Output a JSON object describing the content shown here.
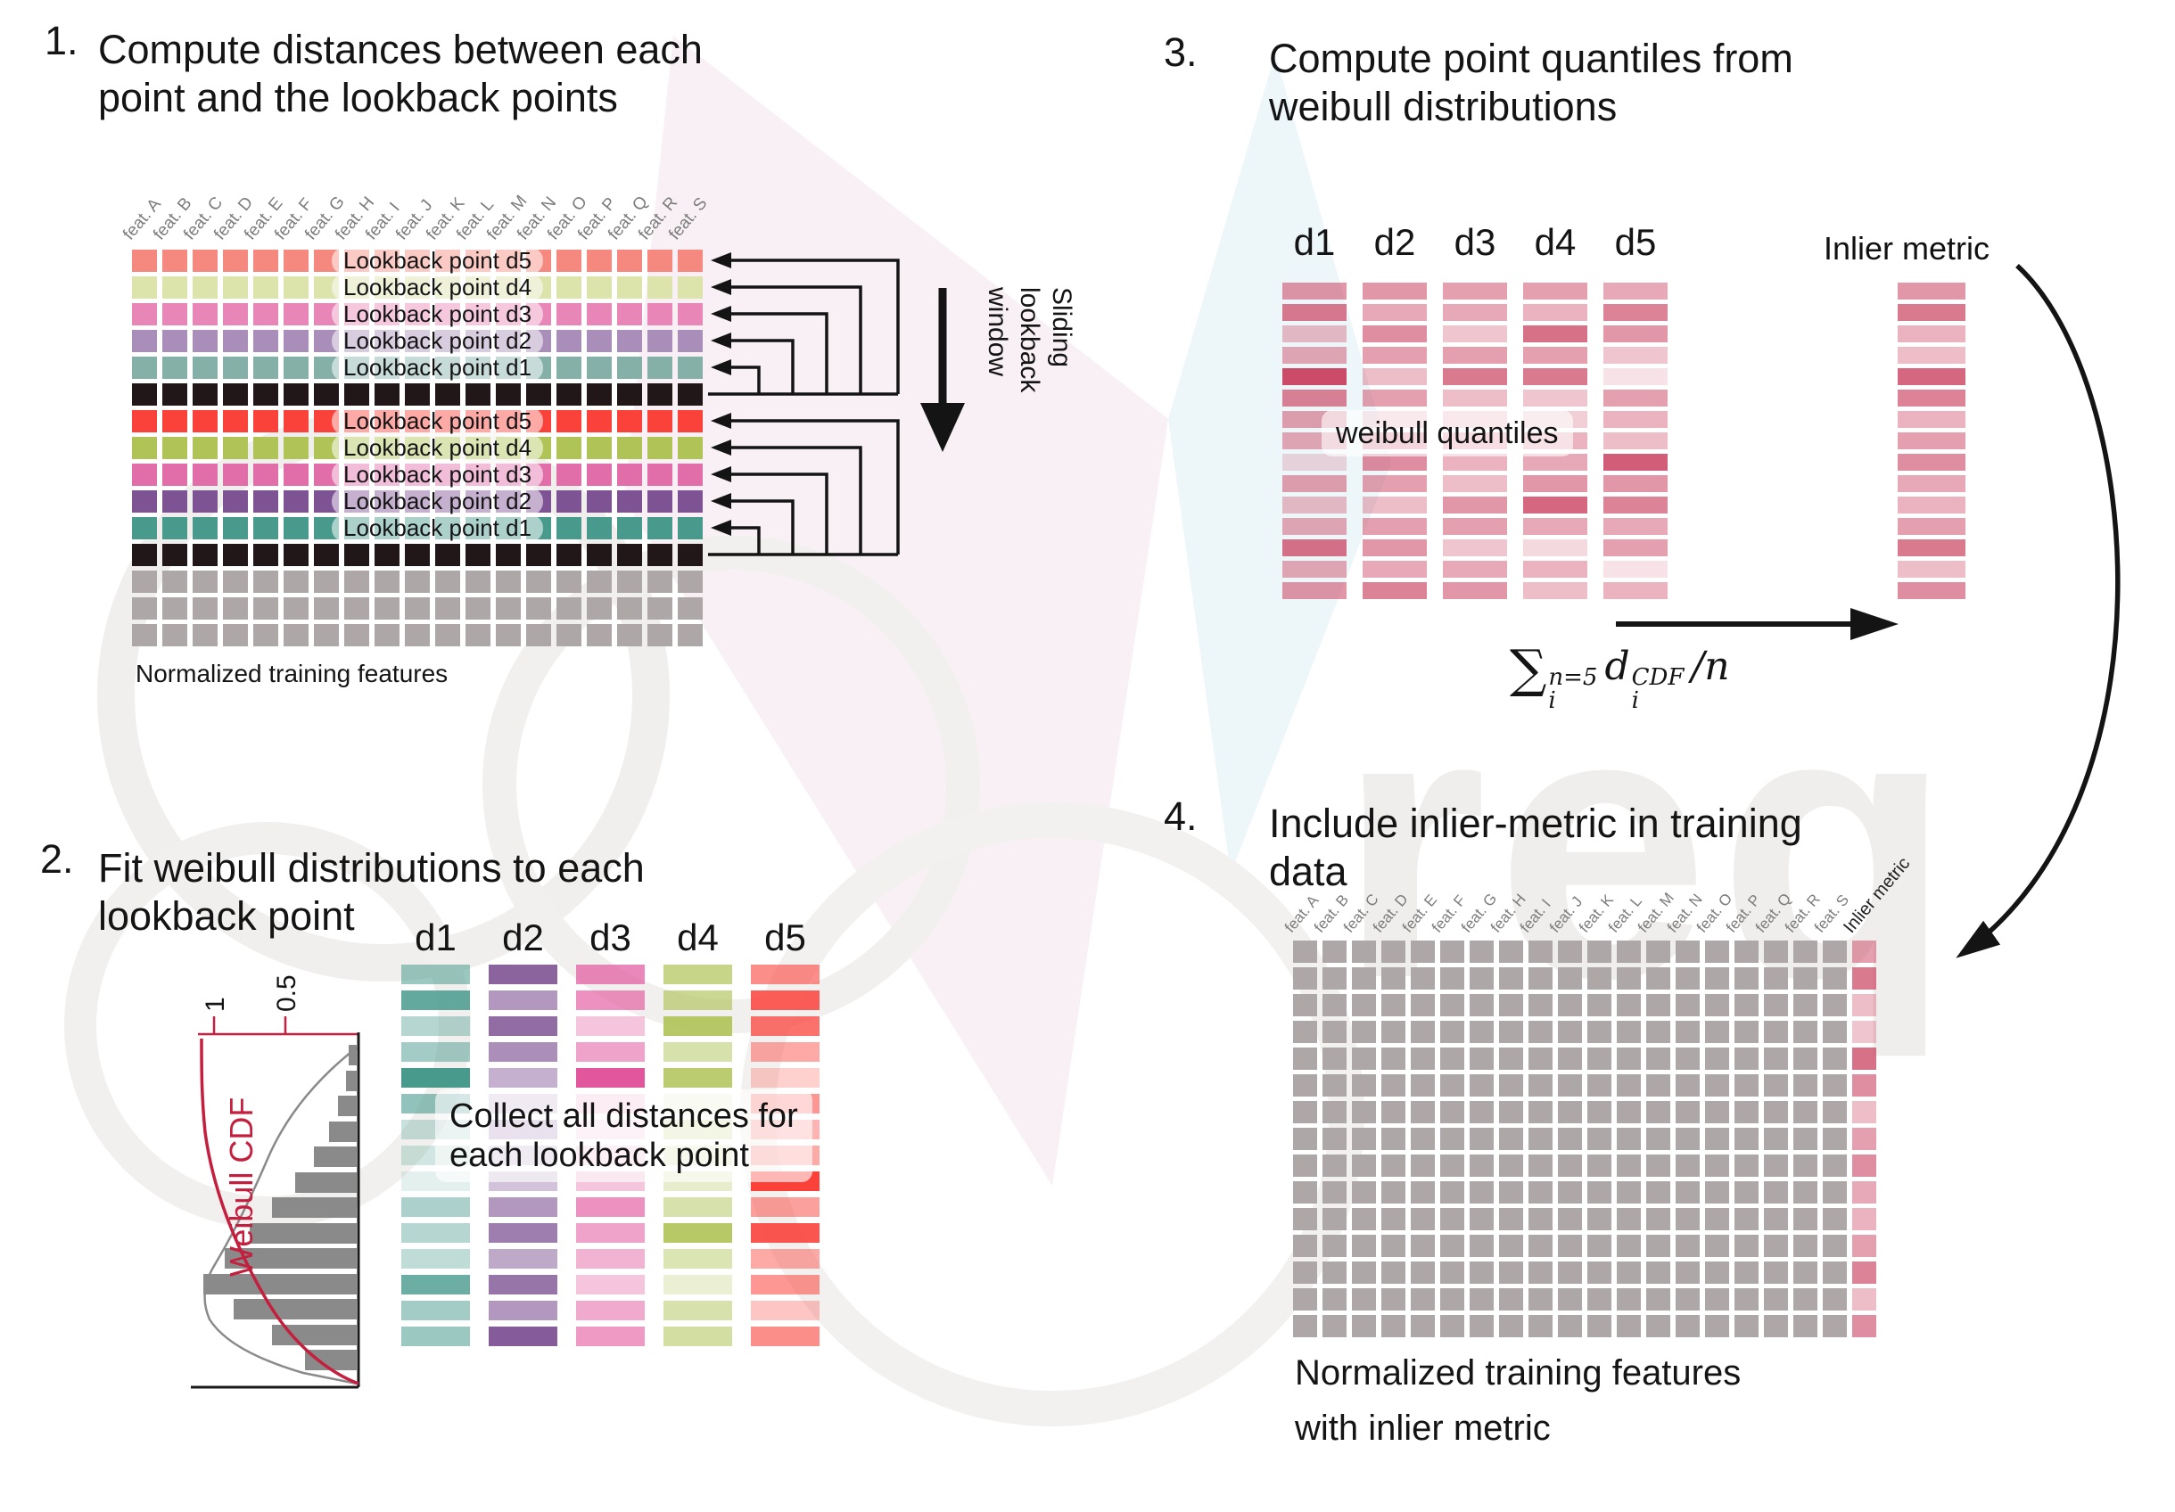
{
  "panel1": {
    "number": "1.",
    "title_line1": "Compute distances between each",
    "title_line2": "point and the lookback points",
    "features": [
      "feat. A",
      "feat. B",
      "feat. C",
      "feat. D",
      "feat. E",
      "feat. F",
      "feat. G",
      "feat. H",
      "feat. I",
      "feat. J",
      "feat. K",
      "feat. L",
      "feat. M",
      "feat. N",
      "feat. O",
      "feat. P",
      "feat. Q",
      "feat. R",
      "feat. S"
    ],
    "lookback_labels": [
      "Lookback point d5",
      "Lookback point d4",
      "Lookback point d3",
      "Lookback point d2",
      "Lookback point d1"
    ],
    "row_sequence": [
      "L0",
      "L1",
      "L2",
      "L3",
      "L4",
      "B",
      "S0",
      "S1",
      "S2",
      "S3",
      "S4",
      "B",
      "G",
      "G",
      "G"
    ],
    "colors": {
      "light": [
        "#f5897f",
        "#dce3ab",
        "#e886b7",
        "#a98eb9",
        "#84b0a8"
      ],
      "strong": [
        "#fa423b",
        "#afc357",
        "#e26ea9",
        "#7e5394",
        "#489a8d"
      ],
      "black": "#211718",
      "gray": "#ada7a7"
    },
    "sliding_label_lines": [
      "Sliding",
      "lookback",
      "window"
    ],
    "caption": "Normalized training features"
  },
  "panel2": {
    "number": "2.",
    "title_line1": "Fit weibull distributions to each",
    "title_line2": "lookback point",
    "histogram": {
      "cdf_label": "Weibull CDF",
      "tick_labels": [
        "1",
        "0.5"
      ],
      "bar_fractions": [
        0.05,
        0.07,
        0.12,
        0.18,
        0.28,
        0.4,
        0.55,
        0.7,
        0.86,
        1.0,
        0.8,
        0.55,
        0.34
      ],
      "bar_color": "#8a8a8a",
      "density_color": "#8a8a8a",
      "cdf_color": "#c41f3e",
      "axis_color": "#1a1a1a"
    },
    "columns": [
      {
        "label": "d1",
        "color": "#489a8d",
        "shades": [
          0.55,
          0.85,
          0.4,
          0.5,
          1.0,
          0.6,
          0.3,
          0.25,
          0.15,
          0.45,
          0.4,
          0.35,
          0.8,
          0.5,
          0.55
        ]
      },
      {
        "label": "d2",
        "color": "#7e5394",
        "shades": [
          0.9,
          0.6,
          0.85,
          0.65,
          0.45,
          0.3,
          0.45,
          0.3,
          0.35,
          0.6,
          0.75,
          0.5,
          0.8,
          0.6,
          0.95
        ]
      },
      {
        "label": "d3",
        "color": "#e2569e",
        "shades": [
          0.7,
          0.65,
          0.35,
          0.55,
          1.0,
          0.3,
          0.2,
          0.25,
          0.35,
          0.65,
          0.55,
          0.45,
          0.35,
          0.5,
          0.6
        ]
      },
      {
        "label": "d4",
        "color": "#afc357",
        "shades": [
          0.7,
          0.65,
          0.9,
          0.5,
          0.85,
          0.2,
          0.4,
          0.3,
          0.3,
          0.5,
          0.9,
          0.45,
          0.25,
          0.5,
          0.55
        ]
      },
      {
        "label": "d5",
        "color": "#fa423b",
        "shades": [
          0.6,
          0.85,
          0.75,
          0.45,
          0.25,
          0.55,
          0.4,
          0.45,
          1.0,
          0.5,
          0.9,
          0.45,
          0.55,
          0.3,
          0.6
        ]
      }
    ],
    "overlay_line1": "Collect all distances for",
    "overlay_line2": "each lookback point"
  },
  "panel3": {
    "number": "3.",
    "title_line1": "Compute point quantiles from",
    "title_line2": "weibull distributions",
    "bar_color": "#ca4160",
    "columns": [
      {
        "label": "d1",
        "shades": [
          0.55,
          0.7,
          0.35,
          0.45,
          0.95,
          0.65,
          0.5,
          0.45,
          0.2,
          0.5,
          0.35,
          0.45,
          0.75,
          0.45,
          0.55
        ]
      },
      {
        "label": "d2",
        "shades": [
          0.55,
          0.45,
          0.6,
          0.5,
          0.35,
          0.5,
          0.3,
          0.55,
          0.6,
          0.5,
          0.35,
          0.5,
          0.55,
          0.45,
          0.65
        ]
      },
      {
        "label": "d3",
        "shades": [
          0.5,
          0.45,
          0.3,
          0.5,
          0.7,
          0.35,
          0.3,
          0.45,
          0.4,
          0.35,
          0.55,
          0.5,
          0.3,
          0.45,
          0.55
        ]
      },
      {
        "label": "d4",
        "shades": [
          0.5,
          0.4,
          0.75,
          0.5,
          0.7,
          0.3,
          0.25,
          0.4,
          0.45,
          0.55,
          0.8,
          0.45,
          0.2,
          0.4,
          0.35
        ]
      },
      {
        "label": "d5",
        "shades": [
          0.45,
          0.65,
          0.55,
          0.3,
          0.15,
          0.5,
          0.4,
          0.35,
          0.85,
          0.55,
          0.65,
          0.45,
          0.5,
          0.15,
          0.4
        ]
      }
    ],
    "overlay": "weibull quantiles",
    "inlier": {
      "label": "Inlier metric",
      "shades": [
        0.55,
        0.7,
        0.4,
        0.35,
        0.8,
        0.65,
        0.4,
        0.5,
        0.6,
        0.45,
        0.4,
        0.5,
        0.7,
        0.35,
        0.6
      ]
    },
    "formula": {
      "sigma": "∑",
      "sup": "n=5",
      "sub": "i",
      "var": "d",
      "var_sup": "CDF",
      "var_sub": "i",
      "tail": "/n"
    }
  },
  "panel4": {
    "number": "4.",
    "title_line1": "Include inlier-metric in training",
    "title_line2": "data",
    "features": [
      "feat. A",
      "feat. B",
      "feat. C",
      "feat. D",
      "feat. E",
      "feat. F",
      "feat. G",
      "feat. H",
      "feat. I",
      "feat. J",
      "feat. K",
      "feat. L",
      "feat. M",
      "feat. N",
      "feat. O",
      "feat. P",
      "feat. Q",
      "feat. R",
      "feat. S"
    ],
    "inlier_label": "Inlier metric",
    "cell_color": "#ada7a7",
    "inlier_color": "#ca4160",
    "inlier_shades": [
      0.5,
      0.7,
      0.35,
      0.3,
      0.75,
      0.6,
      0.35,
      0.5,
      0.6,
      0.45,
      0.4,
      0.5,
      0.65,
      0.35,
      0.6
    ],
    "caption_line1": "Normalized training features",
    "caption_line2": "with inlier metric"
  },
  "watermark": {
    "text": "req"
  }
}
